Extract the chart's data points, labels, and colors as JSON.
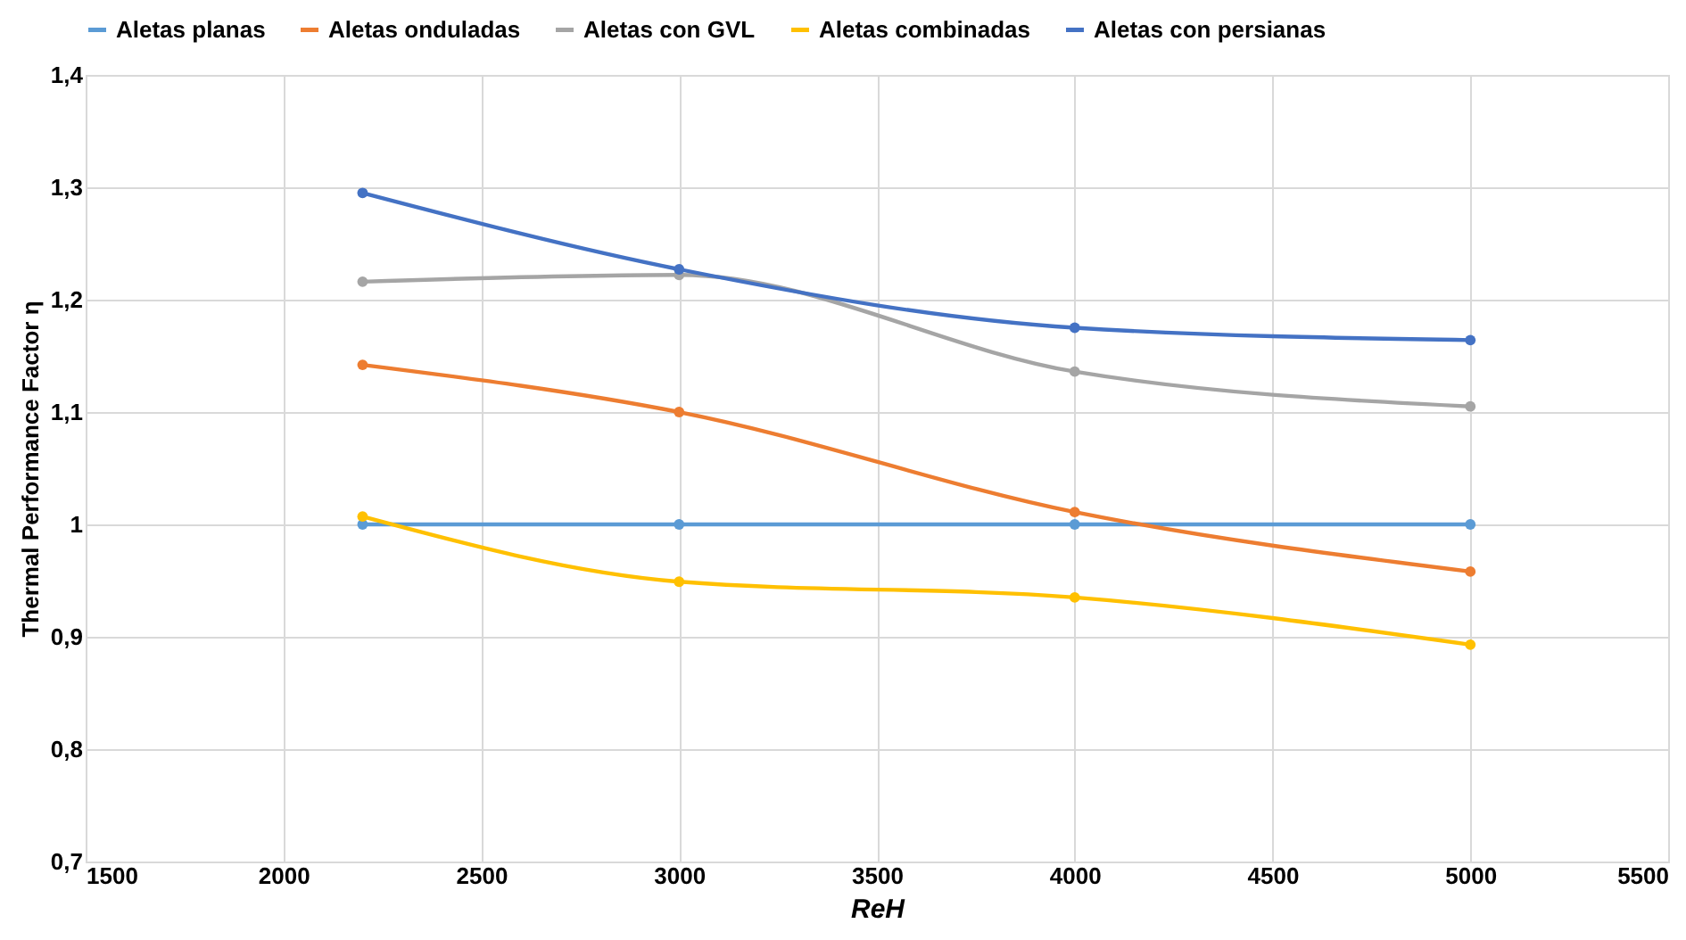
{
  "chart_data": {
    "type": "line",
    "xlabel": "ReH",
    "ylabel": "Thermal Performance Factor η",
    "x": [
      2200,
      3000,
      4000,
      5000
    ],
    "series": [
      {
        "name": "Aletas planas",
        "color": "#5b9bd5",
        "values": [
          1.0,
          1.0,
          1.0,
          1.0
        ]
      },
      {
        "name": "Aletas onduladas",
        "color": "#ed7d31",
        "values": [
          1.142,
          1.1,
          1.011,
          0.958
        ]
      },
      {
        "name": "Aletas con GVL",
        "color": "#a5a5a5",
        "values": [
          1.216,
          1.222,
          1.136,
          1.105
        ]
      },
      {
        "name": "Aletas combinadas",
        "color": "#ffc000",
        "values": [
          1.007,
          0.949,
          0.935,
          0.893
        ]
      },
      {
        "name": "Aletas con persianas",
        "color": "#4472c4",
        "values": [
          1.295,
          1.227,
          1.175,
          1.164
        ]
      }
    ],
    "xlim": [
      1500,
      5500
    ],
    "xticks": [
      1500,
      2000,
      2500,
      3000,
      3500,
      4000,
      4500,
      5000,
      5500
    ],
    "ylim": [
      0.7,
      1.4
    ],
    "yticks": [
      {
        "value": 0.7,
        "label": "0,7"
      },
      {
        "value": 0.8,
        "label": "0,8"
      },
      {
        "value": 0.9,
        "label": "0,9"
      },
      {
        "value": 1.0,
        "label": "1"
      },
      {
        "value": 1.1,
        "label": "1,1"
      },
      {
        "value": 1.2,
        "label": "1,2"
      },
      {
        "value": 1.3,
        "label": "1,3"
      },
      {
        "value": 1.4,
        "label": "1,4"
      }
    ],
    "grid": true,
    "legend": "top",
    "marker": "circle",
    "line_style": "solid"
  }
}
